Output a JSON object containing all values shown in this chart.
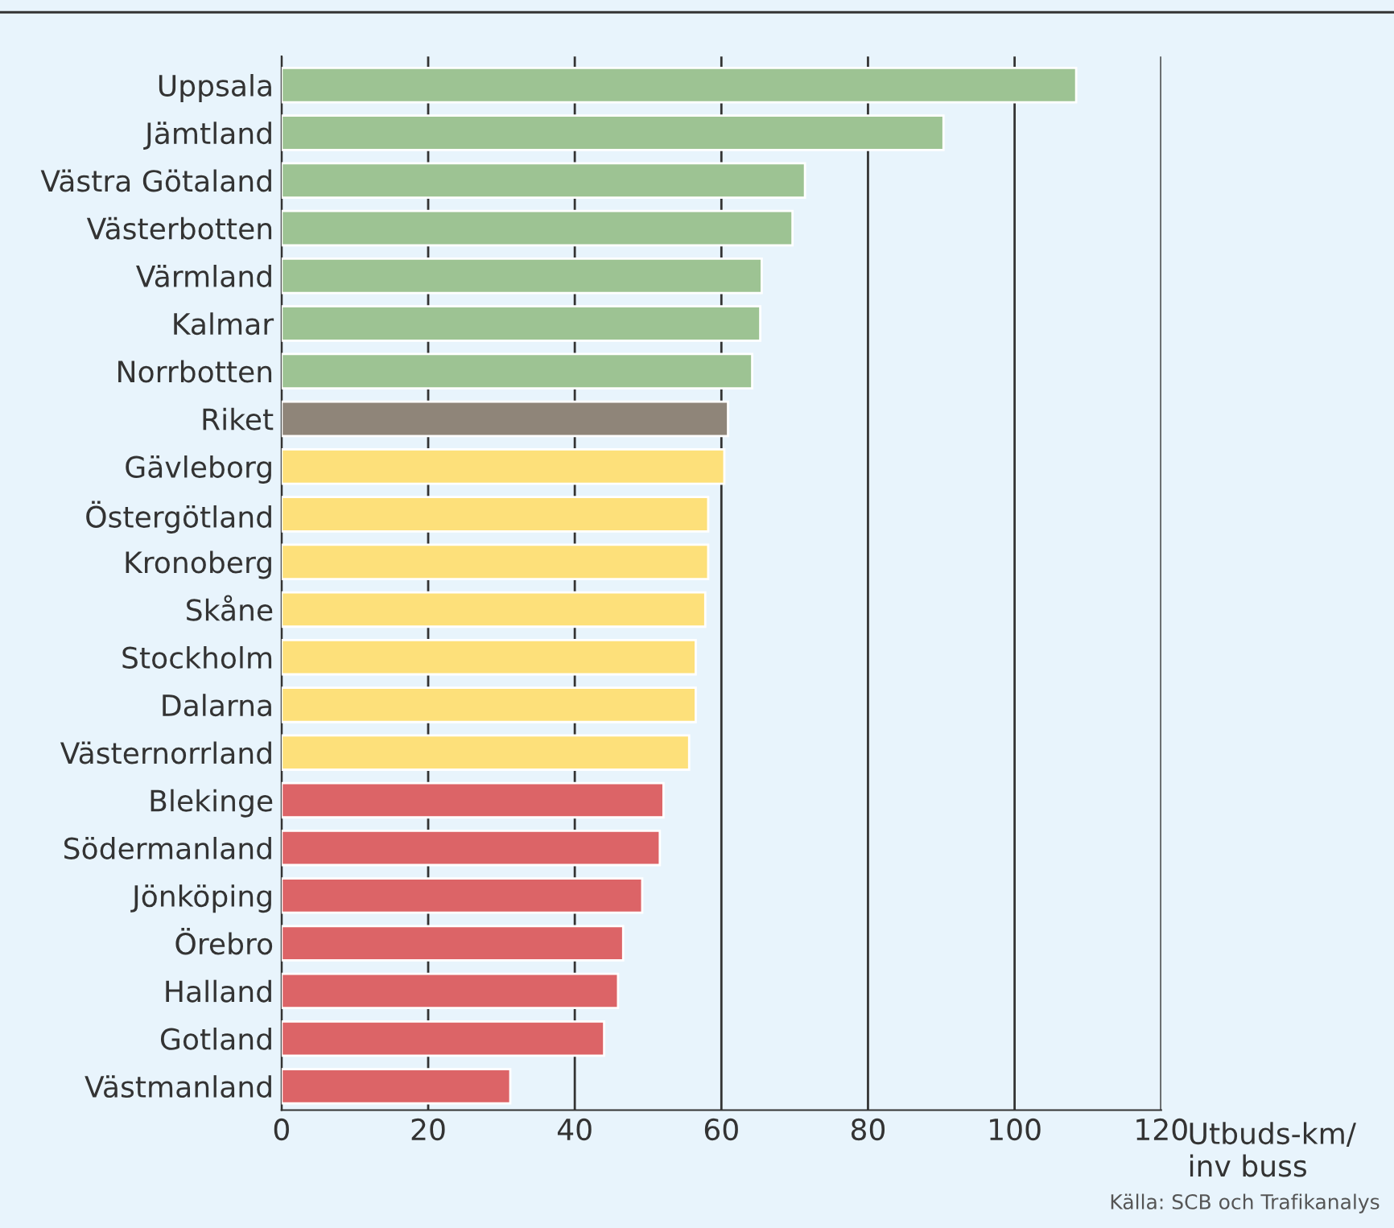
{
  "chart_data": {
    "type": "bar",
    "orientation": "horizontal",
    "xlabel": "Utbuds-km/\ninv buss",
    "categories": [
      "Uppsala",
      "Jämtland",
      "Västra Götaland",
      "Västerbotten",
      "Värmland",
      "Kalmar",
      "Norrbotten",
      "Riket",
      "Gävleborg",
      "Östergötland",
      "Kronoberg",
      "Skåne",
      "Stockholm",
      "Dalarna",
      "Västernorrland",
      "Blekinge",
      "Södermanland",
      "Jönköping",
      "Örebro",
      "Halland",
      "Gotland",
      "Västmanland"
    ],
    "values": [
      108.4,
      90.3,
      71.4,
      69.7,
      65.5,
      65.3,
      64.2,
      60.9,
      60.4,
      58.2,
      58.2,
      57.8,
      56.5,
      56.5,
      55.6,
      52.1,
      51.6,
      49.2,
      46.6,
      45.9,
      44.0,
      31.2
    ],
    "colors": [
      "#9dc393",
      "#9dc393",
      "#9dc393",
      "#9dc393",
      "#9dc393",
      "#9dc393",
      "#9dc393",
      "#8f8579",
      "#fde07a",
      "#fde07a",
      "#fde07a",
      "#fde07a",
      "#fde07a",
      "#fde07a",
      "#fde07a",
      "#dc6467",
      "#dc6467",
      "#dc6467",
      "#dc6467",
      "#dc6467",
      "#dc6467",
      "#dc6467"
    ],
    "xlim": [
      0,
      120
    ],
    "xticks": [
      0,
      20,
      40,
      60,
      80,
      100,
      120
    ],
    "grid": "x",
    "legend": false,
    "annotations": [
      "Källa: SCB och Trafikanalys"
    ]
  }
}
